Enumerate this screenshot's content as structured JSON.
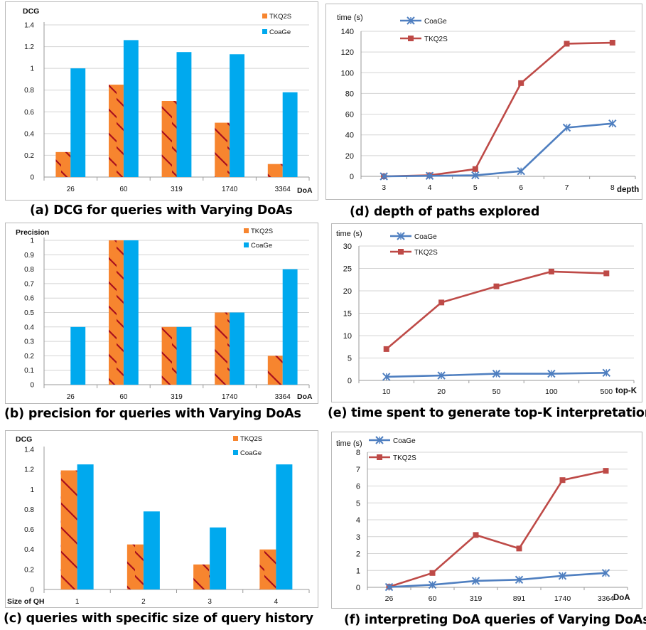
{
  "colors": {
    "tkq2s_bar": "#F7852F",
    "hatch": "#A80F1E",
    "coage_bar": "#00A9EE",
    "coage_line": "#4F7FC0",
    "tkq2s_line": "#BE4A47",
    "grid": "#d4d4d4",
    "axis": "#9a9a9a"
  },
  "captions": {
    "a": "(a) DCG for queries with Varying DoAs",
    "b": "(b) precision for queries with Varying DoAs",
    "c": "(c) queries with specific size of query history",
    "d": "(d) depth of paths explored",
    "e": "(e) time spent to generate  top-K interpretations",
    "f": "(f)  interpreting DoA queries of Varying DoAs"
  },
  "chart_data": [
    {
      "id": "a",
      "type": "bar",
      "ylabel": "DCG",
      "xlabel": "DoA",
      "ylim": [
        0,
        1.4
      ],
      "yticks": [
        "0",
        "0.2",
        "0.4",
        "0.6",
        "0.8",
        "1",
        "1.2",
        "1.4"
      ],
      "categories": [
        "26",
        "60",
        "319",
        "1740",
        "3364"
      ],
      "grid": true,
      "legend": "top-right",
      "series": [
        {
          "name": "TKQ2S",
          "values": [
            0.23,
            0.85,
            0.7,
            0.5,
            0.12
          ]
        },
        {
          "name": "CoaGe",
          "values": [
            1.0,
            1.26,
            1.15,
            1.13,
            0.78
          ]
        }
      ]
    },
    {
      "id": "b",
      "type": "bar",
      "ylabel": "Precision",
      "xlabel": "DoA",
      "ylim": [
        0,
        1
      ],
      "yticks": [
        "0",
        "0.1",
        "0.2",
        "0.3",
        "0.4",
        "0.5",
        "0.6",
        "0.7",
        "0.8",
        "0.9",
        "1"
      ],
      "categories": [
        "26",
        "60",
        "319",
        "1740",
        "3364"
      ],
      "grid": true,
      "legend": "top-right",
      "series": [
        {
          "name": "TKQ2S",
          "values": [
            0,
            1.0,
            0.4,
            0.5,
            0.2
          ]
        },
        {
          "name": "CoaGe",
          "values": [
            0.4,
            1.0,
            0.4,
            0.5,
            0.8
          ]
        }
      ]
    },
    {
      "id": "c",
      "type": "bar",
      "ylabel": "DCG",
      "xlabel": "Size of QH",
      "ylim": [
        0,
        1.4
      ],
      "yticks": [
        "0",
        "0.2",
        "0.4",
        "0.6",
        "0.8",
        "1",
        "1.2",
        "1.4"
      ],
      "categories": [
        "1",
        "2",
        "3",
        "4"
      ],
      "grid": false,
      "legend": "top-right",
      "series": [
        {
          "name": "TKQ2S",
          "values": [
            1.19,
            0.45,
            0.25,
            0.4
          ]
        },
        {
          "name": "CoaGe",
          "values": [
            1.25,
            0.78,
            0.62,
            1.25
          ]
        }
      ]
    },
    {
      "id": "d",
      "type": "line",
      "ylabel": "time (s)",
      "xlabel": "depth",
      "ylim": [
        0,
        140
      ],
      "yticks": [
        "0",
        "20",
        "40",
        "60",
        "80",
        "100",
        "120",
        "140"
      ],
      "x": [
        "3",
        "4",
        "5",
        "6",
        "7",
        "8"
      ],
      "grid": true,
      "legend": "top-left",
      "series": [
        {
          "name": "CoaGe",
          "values": [
            0,
            0.5,
            1,
            5,
            47,
            51
          ]
        },
        {
          "name": "TKQ2S",
          "values": [
            0,
            1,
            7,
            90,
            128,
            129
          ]
        }
      ]
    },
    {
      "id": "e",
      "type": "line",
      "ylabel": "time (s)",
      "xlabel": "top-K",
      "ylim": [
        0,
        30
      ],
      "yticks": [
        "0",
        "5",
        "10",
        "15",
        "20",
        "25",
        "30"
      ],
      "x": [
        "10",
        "20",
        "50",
        "100",
        "500"
      ],
      "grid": true,
      "legend": "top-left",
      "series": [
        {
          "name": "CoaGe",
          "values": [
            0.8,
            1.1,
            1.5,
            1.5,
            1.7
          ]
        },
        {
          "name": "TKQ2S",
          "values": [
            7.0,
            17.4,
            21.0,
            24.3,
            23.9
          ]
        }
      ]
    },
    {
      "id": "f",
      "type": "line",
      "ylabel": "time (s)",
      "xlabel": "DoA",
      "ylim": [
        0,
        8
      ],
      "yticks": [
        "0",
        "1",
        "2",
        "3",
        "4",
        "5",
        "6",
        "7",
        "8"
      ],
      "x": [
        "26",
        "60",
        "319",
        "891",
        "1740",
        "3364"
      ],
      "grid": true,
      "legend": "top-left",
      "series": [
        {
          "name": "CoaGe",
          "values": [
            0.02,
            0.15,
            0.38,
            0.45,
            0.68,
            0.85
          ]
        },
        {
          "name": "TKQ2S",
          "values": [
            0.03,
            0.85,
            3.1,
            2.3,
            6.35,
            6.9
          ]
        }
      ]
    }
  ]
}
